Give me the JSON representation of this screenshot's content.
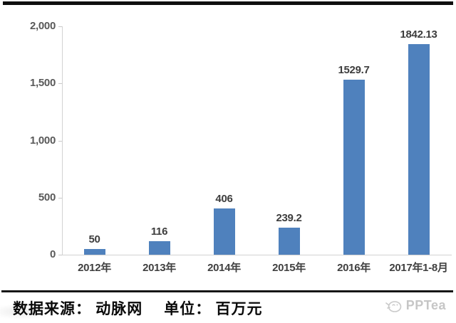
{
  "chart_data": {
    "type": "bar",
    "categories": [
      "2012年",
      "2013年",
      "2014年",
      "2015年",
      "2016年",
      "2017年1-8月"
    ],
    "values": [
      50,
      116,
      406,
      239.2,
      1529.7,
      1842.13
    ],
    "value_labels": [
      "50",
      "116",
      "406",
      "239.2",
      "1529.7",
      "1842.13"
    ],
    "title": "",
    "xlabel": "",
    "ylabel": "",
    "ylim": [
      0,
      2000
    ],
    "yticks": [
      {
        "value": 0,
        "label": "0"
      },
      {
        "value": 500,
        "label": "500"
      },
      {
        "value": 1000,
        "label": "1,000"
      },
      {
        "value": 1500,
        "label": "1,500"
      },
      {
        "value": 2000,
        "label": "2,000"
      }
    ],
    "grid": false,
    "legend": null,
    "bar_color": "#4f81bd"
  },
  "footer": {
    "source": "数据来源： 动脉网",
    "unit": "单位： 百万元",
    "brand": "PPTea"
  },
  "colors": {
    "bar": "#4f81bd",
    "axis_line": "#d2d2d2",
    "tick_label": "#595959",
    "value_label": "#3d3d3d",
    "top_rule": "#0f0f0f",
    "bottom_rule": "#161616",
    "watermark": "#c6c6c6"
  }
}
